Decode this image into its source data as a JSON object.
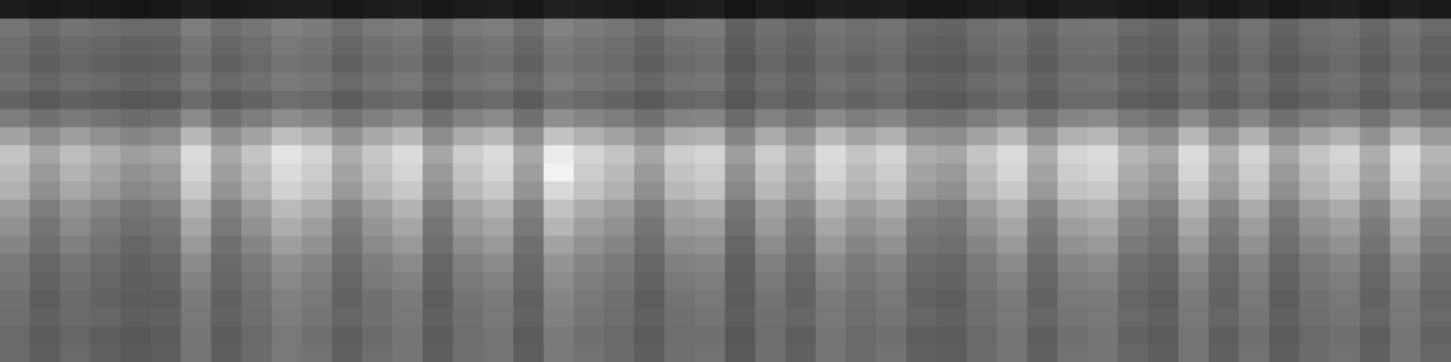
{
  "chart_data": {
    "type": "heatmap",
    "grid": false,
    "tick_labels": false,
    "cell_range": [
      0,
      100
    ],
    "cells": [
      [
        11,
        9,
        10,
        9,
        8,
        9,
        12,
        9,
        11,
        12,
        12,
        9,
        11,
        12,
        9,
        11,
        12,
        9,
        13,
        12,
        11,
        9,
        11,
        12,
        8,
        11,
        9,
        12,
        11,
        12,
        9,
        9,
        11,
        12,
        9,
        12,
        12,
        10,
        9,
        12,
        9,
        12,
        9,
        11,
        12,
        9,
        12,
        10
      ],
      [
        46,
        42,
        45,
        43,
        41,
        42,
        49,
        43,
        46,
        50,
        48,
        43,
        47,
        49,
        42,
        47,
        49,
        43,
        51,
        48,
        46,
        42,
        47,
        48,
        38,
        44,
        40,
        46,
        43,
        45,
        40,
        39,
        43,
        46,
        40,
        45,
        46,
        41,
        39,
        46,
        40,
        45,
        39,
        43,
        45,
        40,
        46,
        41
      ],
      [
        43,
        39,
        42,
        40,
        38,
        39,
        46,
        40,
        43,
        47,
        45,
        40,
        44,
        46,
        39,
        44,
        46,
        40,
        48,
        45,
        43,
        39,
        44,
        45,
        36,
        42,
        38,
        44,
        41,
        43,
        38,
        37,
        41,
        44,
        38,
        43,
        44,
        39,
        37,
        44,
        38,
        43,
        37,
        41,
        43,
        38,
        44,
        39
      ],
      [
        41,
        37,
        40,
        38,
        36,
        37,
        44,
        38,
        41,
        45,
        43,
        38,
        42,
        44,
        37,
        42,
        44,
        38,
        46,
        43,
        41,
        37,
        42,
        43,
        34,
        40,
        36,
        42,
        39,
        41,
        36,
        35,
        39,
        42,
        36,
        41,
        42,
        37,
        35,
        42,
        36,
        41,
        35,
        39,
        41,
        36,
        42,
        37
      ],
      [
        44,
        40,
        43,
        41,
        39,
        40,
        47,
        41,
        44,
        48,
        46,
        41,
        45,
        47,
        40,
        45,
        47,
        41,
        49,
        46,
        44,
        40,
        45,
        46,
        37,
        43,
        39,
        45,
        42,
        44,
        39,
        38,
        42,
        45,
        39,
        44,
        45,
        40,
        38,
        45,
        39,
        44,
        38,
        42,
        44,
        39,
        45,
        40
      ],
      [
        39,
        35,
        38,
        36,
        34,
        35,
        42,
        36,
        39,
        43,
        41,
        36,
        40,
        42,
        35,
        40,
        42,
        36,
        44,
        41,
        39,
        35,
        40,
        41,
        34,
        40,
        36,
        42,
        39,
        41,
        36,
        35,
        39,
        42,
        36,
        41,
        42,
        37,
        35,
        42,
        36,
        41,
        35,
        39,
        41,
        36,
        42,
        37
      ],
      [
        49,
        44,
        48,
        45,
        42,
        44,
        54,
        44,
        49,
        55,
        52,
        45,
        50,
        54,
        44,
        51,
        54,
        44,
        56,
        52,
        49,
        44,
        51,
        52,
        42,
        51,
        45,
        54,
        49,
        52,
        45,
        44,
        49,
        54,
        45,
        52,
        54,
        47,
        44,
        54,
        45,
        52,
        44,
        49,
        52,
        45,
        54,
        47
      ],
      [
        64,
        55,
        62,
        57,
        52,
        55,
        72,
        56,
        64,
        74,
        69,
        57,
        66,
        72,
        55,
        67,
        72,
        56,
        76,
        69,
        64,
        55,
        67,
        69,
        52,
        67,
        57,
        72,
        64,
        69,
        57,
        55,
        64,
        72,
        57,
        69,
        72,
        60,
        55,
        72,
        57,
        69,
        55,
        64,
        69,
        57,
        72,
        60
      ],
      [
        77,
        65,
        74,
        68,
        62,
        65,
        86,
        66,
        77,
        89,
        83,
        68,
        78,
        86,
        65,
        80,
        86,
        66,
        92,
        83,
        77,
        65,
        80,
        83,
        62,
        80,
        68,
        86,
        77,
        83,
        68,
        65,
        77,
        86,
        68,
        83,
        86,
        71,
        65,
        86,
        68,
        83,
        65,
        77,
        83,
        68,
        86,
        71
      ],
      [
        73,
        60,
        70,
        64,
        57,
        60,
        83,
        62,
        73,
        86,
        80,
        64,
        75,
        83,
        60,
        76,
        83,
        62,
        95,
        80,
        73,
        60,
        76,
        80,
        57,
        76,
        64,
        83,
        73,
        80,
        64,
        60,
        73,
        83,
        64,
        80,
        83,
        67,
        60,
        83,
        64,
        80,
        60,
        73,
        80,
        64,
        83,
        67
      ],
      [
        69,
        56,
        66,
        60,
        53,
        56,
        79,
        58,
        69,
        82,
        76,
        60,
        71,
        79,
        56,
        72,
        79,
        58,
        85,
        76,
        69,
        56,
        72,
        76,
        53,
        72,
        60,
        79,
        69,
        76,
        60,
        56,
        69,
        79,
        60,
        76,
        79,
        63,
        56,
        79,
        60,
        76,
        56,
        69,
        76,
        60,
        79,
        63
      ],
      [
        61,
        49,
        58,
        52,
        46,
        49,
        70,
        50,
        61,
        73,
        67,
        52,
        62,
        70,
        49,
        64,
        70,
        50,
        76,
        67,
        61,
        49,
        64,
        67,
        46,
        64,
        52,
        70,
        61,
        67,
        52,
        49,
        61,
        70,
        52,
        67,
        70,
        55,
        49,
        70,
        52,
        67,
        49,
        61,
        67,
        52,
        70,
        55
      ],
      [
        57,
        46,
        54,
        48,
        43,
        46,
        65,
        47,
        57,
        68,
        62,
        48,
        58,
        65,
        46,
        60,
        65,
        47,
        71,
        62,
        57,
        46,
        60,
        62,
        43,
        60,
        48,
        65,
        57,
        62,
        48,
        46,
        57,
        65,
        48,
        62,
        65,
        51,
        46,
        65,
        48,
        62,
        46,
        57,
        62,
        48,
        65,
        51
      ],
      [
        52,
        43,
        50,
        45,
        40,
        43,
        60,
        44,
        52,
        62,
        57,
        45,
        54,
        60,
        43,
        55,
        60,
        44,
        64,
        57,
        52,
        43,
        55,
        57,
        40,
        55,
        45,
        60,
        52,
        57,
        45,
        43,
        52,
        60,
        45,
        57,
        60,
        48,
        43,
        60,
        45,
        57,
        43,
        52,
        57,
        45,
        60,
        48
      ],
      [
        48,
        40,
        46,
        42,
        38,
        40,
        54,
        41,
        48,
        56,
        52,
        42,
        49,
        54,
        40,
        50,
        54,
        41,
        58,
        52,
        48,
        40,
        50,
        52,
        38,
        50,
        42,
        54,
        48,
        52,
        42,
        40,
        48,
        54,
        42,
        52,
        54,
        44,
        40,
        54,
        42,
        52,
        40,
        48,
        52,
        42,
        54,
        44
      ],
      [
        46,
        39,
        44,
        40,
        37,
        39,
        51,
        40,
        46,
        53,
        49,
        40,
        47,
        51,
        39,
        48,
        51,
        40,
        55,
        49,
        46,
        39,
        48,
        49,
        37,
        48,
        40,
        51,
        46,
        49,
        40,
        39,
        46,
        51,
        40,
        49,
        51,
        42,
        39,
        51,
        40,
        49,
        39,
        46,
        49,
        40,
        51,
        42
      ],
      [
        44,
        37,
        42,
        39,
        36,
        37,
        48,
        38,
        44,
        50,
        47,
        39,
        44,
        48,
        37,
        45,
        48,
        38,
        52,
        47,
        44,
        37,
        45,
        47,
        36,
        45,
        39,
        48,
        44,
        47,
        39,
        37,
        44,
        48,
        39,
        47,
        48,
        40,
        37,
        48,
        39,
        47,
        37,
        44,
        47,
        39,
        48,
        40
      ],
      [
        43,
        38,
        42,
        40,
        37,
        38,
        47,
        39,
        43,
        49,
        46,
        40,
        44,
        47,
        38,
        44,
        47,
        39,
        50,
        46,
        43,
        38,
        44,
        46,
        37,
        44,
        40,
        47,
        43,
        46,
        40,
        38,
        43,
        47,
        40,
        46,
        47,
        41,
        38,
        47,
        40,
        46,
        38,
        43,
        46,
        40,
        47,
        41
      ],
      [
        41,
        36,
        40,
        37,
        34,
        36,
        46,
        36,
        41,
        47,
        44,
        37,
        42,
        46,
        36,
        43,
        46,
        36,
        48,
        44,
        41,
        36,
        43,
        44,
        34,
        43,
        37,
        46,
        41,
        44,
        37,
        36,
        41,
        46,
        37,
        44,
        46,
        39,
        36,
        46,
        37,
        44,
        36,
        41,
        44,
        37,
        46,
        39
      ],
      [
        42,
        37,
        41,
        38,
        35,
        37,
        46,
        37,
        42,
        47,
        45,
        38,
        43,
        46,
        37,
        44,
        46,
        37,
        48,
        45,
        42,
        37,
        44,
        45,
        35,
        44,
        38,
        46,
        42,
        45,
        38,
        37,
        42,
        46,
        38,
        45,
        46,
        40,
        37,
        46,
        38,
        45,
        37,
        42,
        45,
        38,
        46,
        40
      ]
    ]
  }
}
